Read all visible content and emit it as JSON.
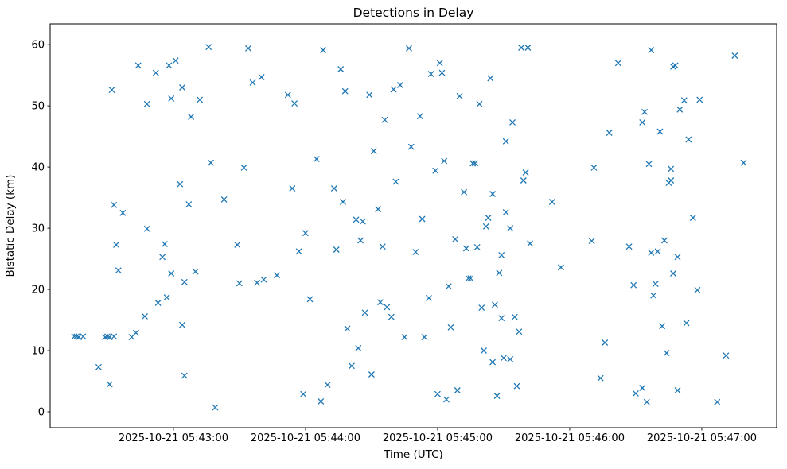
{
  "chart_data": {
    "type": "scatter",
    "title": "Detections in Delay",
    "xlabel": "Time (UTC)",
    "ylabel": "Bistatic Delay (km)",
    "marker": "x",
    "marker_color": "#1f77b4",
    "grid": false,
    "legend": "none",
    "x_axis": {
      "date": "2025-10-21",
      "start": "05:42:04",
      "end": "05:47:34",
      "ticks": [
        "05:43:00",
        "05:44:00",
        "05:45:00",
        "05:46:00",
        "05:47:00"
      ]
    },
    "y_axis": {
      "min": -2.6,
      "max": 63.4,
      "ticks": [
        0,
        10,
        20,
        30,
        40,
        50,
        60
      ]
    },
    "points": [
      [
        "05:42:15",
        12.3
      ],
      [
        "05:42:16",
        12.3
      ],
      [
        "05:42:17",
        12.2
      ],
      [
        "05:42:19",
        12.3
      ],
      [
        "05:42:26",
        7.3
      ],
      [
        "05:42:29",
        12.2
      ],
      [
        "05:42:30",
        12.3
      ],
      [
        "05:42:31",
        12.2
      ],
      [
        "05:42:33",
        12.3
      ],
      [
        "05:42:31",
        4.5
      ],
      [
        "05:42:32",
        52.6
      ],
      [
        "05:42:33",
        33.8
      ],
      [
        "05:42:34",
        27.3
      ],
      [
        "05:42:35",
        23.1
      ],
      [
        "05:42:37",
        32.5
      ],
      [
        "05:42:41",
        12.2
      ],
      [
        "05:42:43",
        12.9
      ],
      [
        "05:42:44",
        56.6
      ],
      [
        "05:42:47",
        15.6
      ],
      [
        "05:42:48",
        29.9
      ],
      [
        "05:42:48",
        50.3
      ],
      [
        "05:42:52",
        55.4
      ],
      [
        "05:42:53",
        17.8
      ],
      [
        "05:42:55",
        25.3
      ],
      [
        "05:42:56",
        27.4
      ],
      [
        "05:42:57",
        18.7
      ],
      [
        "05:42:58",
        56.6
      ],
      [
        "05:42:59",
        51.2
      ],
      [
        "05:42:59",
        22.6
      ],
      [
        "05:43:01",
        57.4
      ],
      [
        "05:43:03",
        37.2
      ],
      [
        "05:43:04",
        14.2
      ],
      [
        "05:43:04",
        53.0
      ],
      [
        "05:43:05",
        5.9
      ],
      [
        "05:43:05",
        21.2
      ],
      [
        "05:43:07",
        33.9
      ],
      [
        "05:43:08",
        48.2
      ],
      [
        "05:43:10",
        22.9
      ],
      [
        "05:43:12",
        51.0
      ],
      [
        "05:43:16",
        59.6
      ],
      [
        "05:43:17",
        40.7
      ],
      [
        "05:43:19",
        0.7
      ],
      [
        "05:43:23",
        34.7
      ],
      [
        "05:43:29",
        27.3
      ],
      [
        "05:43:30",
        21.0
      ],
      [
        "05:43:32",
        39.9
      ],
      [
        "05:43:34",
        59.4
      ],
      [
        "05:43:36",
        53.8
      ],
      [
        "05:43:38",
        21.1
      ],
      [
        "05:43:40",
        54.7
      ],
      [
        "05:43:41",
        21.6
      ],
      [
        "05:43:47",
        22.3
      ],
      [
        "05:43:52",
        51.8
      ],
      [
        "05:43:54",
        36.5
      ],
      [
        "05:43:55",
        50.4
      ],
      [
        "05:43:57",
        26.2
      ],
      [
        "05:43:59",
        2.9
      ],
      [
        "05:44:00",
        29.2
      ],
      [
        "05:44:02",
        18.4
      ],
      [
        "05:44:05",
        41.3
      ],
      [
        "05:44:07",
        1.7
      ],
      [
        "05:44:08",
        59.1
      ],
      [
        "05:44:10",
        4.4
      ],
      [
        "05:44:13",
        36.5
      ],
      [
        "05:44:14",
        26.5
      ],
      [
        "05:44:16",
        56.0
      ],
      [
        "05:44:17",
        34.3
      ],
      [
        "05:44:18",
        52.4
      ],
      [
        "05:44:19",
        13.6
      ],
      [
        "05:44:21",
        7.5
      ],
      [
        "05:44:23",
        31.4
      ],
      [
        "05:44:24",
        10.4
      ],
      [
        "05:44:25",
        28.0
      ],
      [
        "05:44:26",
        31.1
      ],
      [
        "05:44:27",
        16.2
      ],
      [
        "05:44:29",
        51.8
      ],
      [
        "05:44:30",
        6.1
      ],
      [
        "05:44:31",
        42.6
      ],
      [
        "05:44:33",
        33.1
      ],
      [
        "05:44:34",
        17.9
      ],
      [
        "05:44:35",
        27.0
      ],
      [
        "05:44:36",
        47.7
      ],
      [
        "05:44:37",
        17.1
      ],
      [
        "05:44:39",
        15.5
      ],
      [
        "05:44:40",
        52.7
      ],
      [
        "05:44:41",
        37.6
      ],
      [
        "05:44:43",
        53.4
      ],
      [
        "05:44:45",
        12.2
      ],
      [
        "05:44:47",
        59.4
      ],
      [
        "05:44:48",
        43.3
      ],
      [
        "05:44:50",
        26.1
      ],
      [
        "05:44:52",
        48.3
      ],
      [
        "05:44:53",
        31.5
      ],
      [
        "05:44:54",
        12.2
      ],
      [
        "05:44:56",
        18.6
      ],
      [
        "05:44:57",
        55.2
      ],
      [
        "05:44:59",
        39.4
      ],
      [
        "05:45:00",
        2.9
      ],
      [
        "05:45:01",
        57.0
      ],
      [
        "05:45:02",
        55.4
      ],
      [
        "05:45:03",
        41.0
      ],
      [
        "05:45:04",
        2.0
      ],
      [
        "05:45:05",
        20.5
      ],
      [
        "05:45:06",
        13.8
      ],
      [
        "05:45:08",
        28.2
      ],
      [
        "05:45:09",
        3.5
      ],
      [
        "05:45:10",
        51.6
      ],
      [
        "05:45:12",
        35.9
      ],
      [
        "05:45:13",
        26.7
      ],
      [
        "05:45:14",
        21.8
      ],
      [
        "05:45:15",
        21.8
      ],
      [
        "05:45:16",
        40.6
      ],
      [
        "05:45:17",
        40.6
      ],
      [
        "05:45:18",
        26.9
      ],
      [
        "05:45:19",
        50.3
      ],
      [
        "05:45:20",
        17.0
      ],
      [
        "05:45:21",
        10.0
      ],
      [
        "05:45:22",
        30.3
      ],
      [
        "05:45:23",
        31.7
      ],
      [
        "05:45:24",
        54.5
      ],
      [
        "05:45:25",
        35.6
      ],
      [
        "05:45:25",
        8.1
      ],
      [
        "05:45:26",
        17.5
      ],
      [
        "05:45:27",
        2.6
      ],
      [
        "05:45:28",
        22.7
      ],
      [
        "05:45:29",
        25.6
      ],
      [
        "05:45:29",
        15.3
      ],
      [
        "05:45:30",
        8.8
      ],
      [
        "05:45:31",
        44.2
      ],
      [
        "05:45:31",
        32.6
      ],
      [
        "05:45:33",
        8.6
      ],
      [
        "05:45:33",
        30.0
      ],
      [
        "05:45:34",
        47.3
      ],
      [
        "05:45:35",
        15.5
      ],
      [
        "05:45:36",
        4.2
      ],
      [
        "05:45:37",
        13.1
      ],
      [
        "05:45:38",
        59.5
      ],
      [
        "05:45:39",
        37.8
      ],
      [
        "05:45:40",
        39.1
      ],
      [
        "05:45:41",
        59.5
      ],
      [
        "05:45:42",
        27.5
      ],
      [
        "05:45:52",
        34.3
      ],
      [
        "05:45:56",
        23.6
      ],
      [
        "05:46:10",
        27.9
      ],
      [
        "05:46:11",
        39.9
      ],
      [
        "05:46:14",
        5.5
      ],
      [
        "05:46:16",
        11.3
      ],
      [
        "05:46:18",
        45.6
      ],
      [
        "05:46:22",
        57.0
      ],
      [
        "05:46:27",
        27.0
      ],
      [
        "05:46:29",
        20.7
      ],
      [
        "05:46:30",
        3.0
      ],
      [
        "05:46:33",
        47.3
      ],
      [
        "05:46:33",
        3.9
      ],
      [
        "05:46:34",
        49.0
      ],
      [
        "05:46:35",
        1.6
      ],
      [
        "05:46:36",
        40.5
      ],
      [
        "05:46:37",
        26.0
      ],
      [
        "05:46:37",
        59.1
      ],
      [
        "05:46:38",
        19.0
      ],
      [
        "05:46:39",
        20.9
      ],
      [
        "05:46:40",
        26.2
      ],
      [
        "05:46:41",
        45.8
      ],
      [
        "05:46:42",
        14.0
      ],
      [
        "05:46:43",
        28.0
      ],
      [
        "05:46:44",
        9.6
      ],
      [
        "05:46:45",
        37.4
      ],
      [
        "05:46:46",
        37.8
      ],
      [
        "05:46:46",
        39.7
      ],
      [
        "05:46:47",
        22.6
      ],
      [
        "05:46:47",
        56.4
      ],
      [
        "05:46:48",
        56.6
      ],
      [
        "05:46:49",
        25.3
      ],
      [
        "05:46:49",
        3.5
      ],
      [
        "05:46:50",
        49.4
      ],
      [
        "05:46:52",
        50.9
      ],
      [
        "05:46:53",
        14.5
      ],
      [
        "05:46:54",
        44.5
      ],
      [
        "05:46:56",
        31.7
      ],
      [
        "05:46:58",
        19.9
      ],
      [
        "05:46:59",
        51.0
      ],
      [
        "05:47:07",
        1.6
      ],
      [
        "05:47:11",
        9.2
      ],
      [
        "05:47:15",
        58.2
      ],
      [
        "05:47:19",
        40.7
      ]
    ]
  }
}
